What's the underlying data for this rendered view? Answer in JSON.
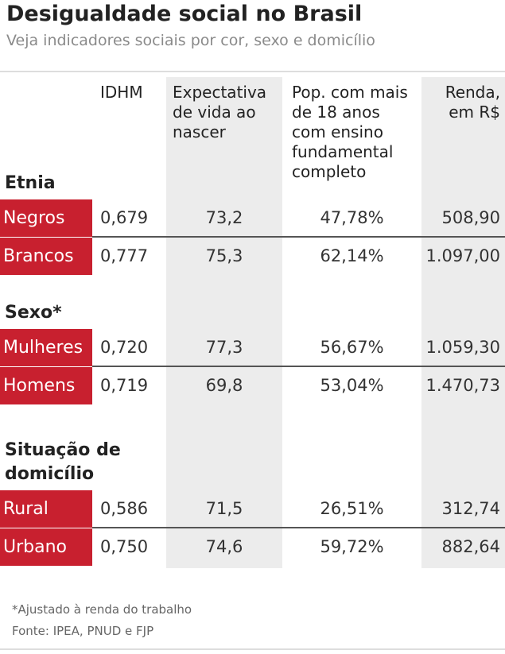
{
  "title": "Desigualdade social no Brasil",
  "subtitle": "Veja indicadores sociais por cor, sexo e domicílio",
  "columns": {
    "idhm": "IDHM",
    "expectativa": [
      "Expectativa",
      "de vida ao",
      "nascer"
    ],
    "populacao": [
      "Pop. com mais",
      "de 18 anos",
      "com ensino",
      "fundamental",
      "completo"
    ],
    "renda": [
      "Renda,",
      "em R$"
    ]
  },
  "sections": [
    {
      "name": [
        "Etnia"
      ]
    },
    {
      "name": [
        "Sexo*"
      ]
    },
    {
      "name": [
        "Situação de",
        "domicílio"
      ]
    }
  ],
  "chart_data": {
    "type": "table",
    "title": "Desigualdade social no Brasil",
    "subtitle": "Veja indicadores sociais por cor, sexo e domicílio",
    "columns": [
      "IDHM",
      "Expectativa de vida ao nascer",
      "Pop. com mais de 18 anos com ensino fundamental completo",
      "Renda, em R$"
    ],
    "rows": [
      {
        "group": "Etnia",
        "label": "Negros",
        "values": [
          "0,679",
          "73,2",
          "47,78%",
          "508,90"
        ]
      },
      {
        "group": "Etnia",
        "label": "Brancos",
        "values": [
          "0,777",
          "75,3",
          "62,14%",
          "1.097,00"
        ]
      },
      {
        "group": "Sexo*",
        "label": "Mulheres",
        "values": [
          "0,720",
          "77,3",
          "56,67%",
          "1.059,30"
        ]
      },
      {
        "group": "Sexo*",
        "label": "Homens",
        "values": [
          "0,719",
          "69,8",
          "53,04%",
          "1.470,73"
        ]
      },
      {
        "group": "Situação de domicílio",
        "label": "Rural",
        "values": [
          "0,586",
          "71,5",
          "26,51%",
          "312,74"
        ]
      },
      {
        "group": "Situação de domicílio",
        "label": "Urbano",
        "values": [
          "0,750",
          "74,6",
          "59,72%",
          "882,64"
        ]
      }
    ]
  },
  "footnote": "*Ajustado à renda do trabalho",
  "source": "Fonte: IPEA, PNUD e FJP",
  "colors": {
    "label_bg": "#c8202f",
    "label_text": "#ffffff",
    "column_shade": "#ececec"
  }
}
